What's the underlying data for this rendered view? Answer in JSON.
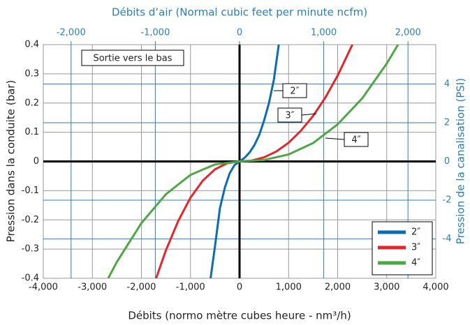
{
  "chart_data": {
    "type": "line",
    "title": "Débits d’air (Normal cubic feet per minute ncfm)",
    "xlabel": "Débits (normo mètre cubes heure - nm³/h)",
    "ylabel": "Pression dans la conduite (bar)",
    "y2label": "Pression de la canalisation (PSI)",
    "xlim": [
      -4000,
      4000
    ],
    "xticks": [
      {
        "value": -4000,
        "label": "-4,000"
      },
      {
        "value": -3000,
        "label": "-3,000"
      },
      {
        "value": -2000,
        "label": "-2,000"
      },
      {
        "value": -1000,
        "label": "-1,000"
      },
      0,
      {
        "value": 1000,
        "label": "1,000"
      },
      {
        "value": 2000,
        "label": "2,000"
      },
      {
        "value": 3000,
        "label": "3,000"
      },
      {
        "value": 4000,
        "label": "4,000"
      }
    ],
    "ylim": [
      -0.4,
      0.4
    ],
    "yticks": [
      -0.4,
      -0.3,
      -0.2,
      -0.1,
      0,
      0.1,
      0.2,
      0.3,
      0.4
    ],
    "x2lim": [
      -2330,
      2330
    ],
    "x2ticks": [
      {
        "value": -2000,
        "label": "-2,000"
      },
      {
        "value": -1000,
        "label": "-1,000"
      },
      0,
      {
        "value": 1000,
        "label": "1,000"
      },
      {
        "value": 2000,
        "label": "2,000"
      }
    ],
    "y2lim": [
      -6.03,
      6.03
    ],
    "y2ticks": [
      -4,
      -2,
      0,
      2,
      4
    ],
    "grid": true,
    "legend": "lower right",
    "series": [
      {
        "name": "2″",
        "color": "#0b6cb0",
        "x": [
          -590,
          -500,
          -400,
          -300,
          -200,
          -100,
          0,
          100,
          200,
          300,
          400,
          500,
          600,
          700,
          800
        ],
        "values": [
          -0.4,
          -0.29,
          -0.16,
          -0.09,
          -0.04,
          -0.012,
          0,
          0.012,
          0.03,
          0.055,
          0.09,
          0.14,
          0.2,
          0.28,
          0.4
        ]
      },
      {
        "name": "3″",
        "color": "#e4262c",
        "x": [
          -1700,
          -1500,
          -1250,
          -1000,
          -750,
          -500,
          -250,
          0,
          250,
          500,
          750,
          1000,
          1250,
          1500,
          1750,
          2000,
          2300
        ],
        "values": [
          -0.4,
          -0.304,
          -0.204,
          -0.124,
          -0.066,
          -0.027,
          -0.006,
          0,
          0.003,
          0.014,
          0.034,
          0.064,
          0.105,
          0.156,
          0.219,
          0.294,
          0.4
        ]
      },
      {
        "name": "4″",
        "color": "#4ca845",
        "x": [
          -2676,
          -2500,
          -2000,
          -1500,
          -1000,
          -500,
          0,
          500,
          1000,
          1500,
          2000,
          2500,
          3000,
          3230
        ],
        "values": [
          -0.4,
          -0.344,
          -0.211,
          -0.112,
          -0.046,
          -0.01,
          0,
          0.005,
          0.024,
          0.063,
          0.127,
          0.216,
          0.335,
          0.4
        ]
      }
    ],
    "annotations": [
      "Sortie vers le bas",
      "2″",
      "3″",
      "4″"
    ]
  }
}
